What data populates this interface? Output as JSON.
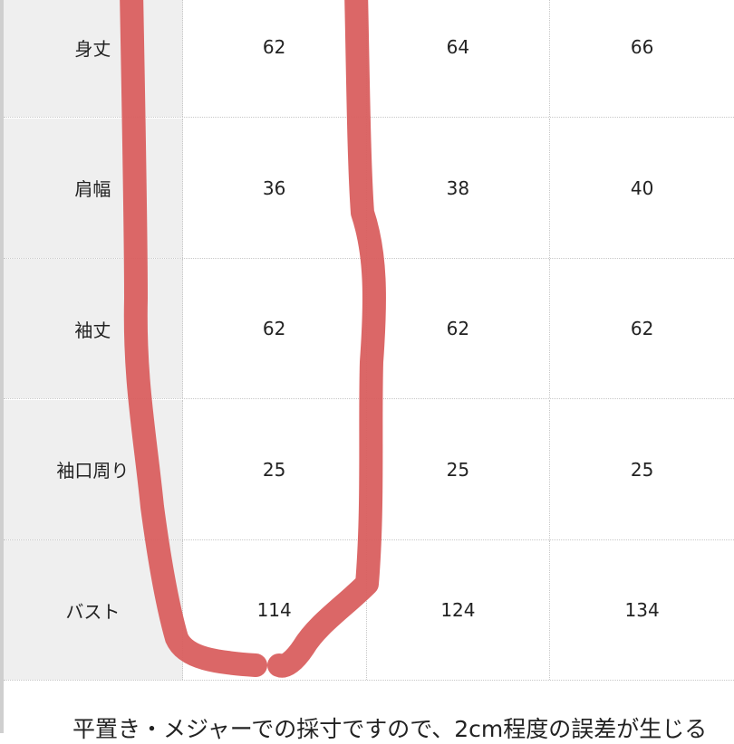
{
  "table": {
    "rows": [
      {
        "label": "身丈",
        "values": [
          "62",
          "64",
          "66"
        ]
      },
      {
        "label": "肩幅",
        "values": [
          "36",
          "38",
          "40"
        ]
      },
      {
        "label": "袖丈",
        "values": [
          "62",
          "62",
          "62"
        ]
      },
      {
        "label": "袖口周り",
        "values": [
          "25",
          "25",
          "25"
        ]
      },
      {
        "label": "バスト",
        "values": [
          "114",
          "124",
          "134"
        ]
      }
    ]
  },
  "note": "平置き・メジャーでの採寸ですので、2cm程度の誤差が生じる",
  "colors": {
    "marker": "#d95f5f",
    "header_bg": "#efefef"
  }
}
